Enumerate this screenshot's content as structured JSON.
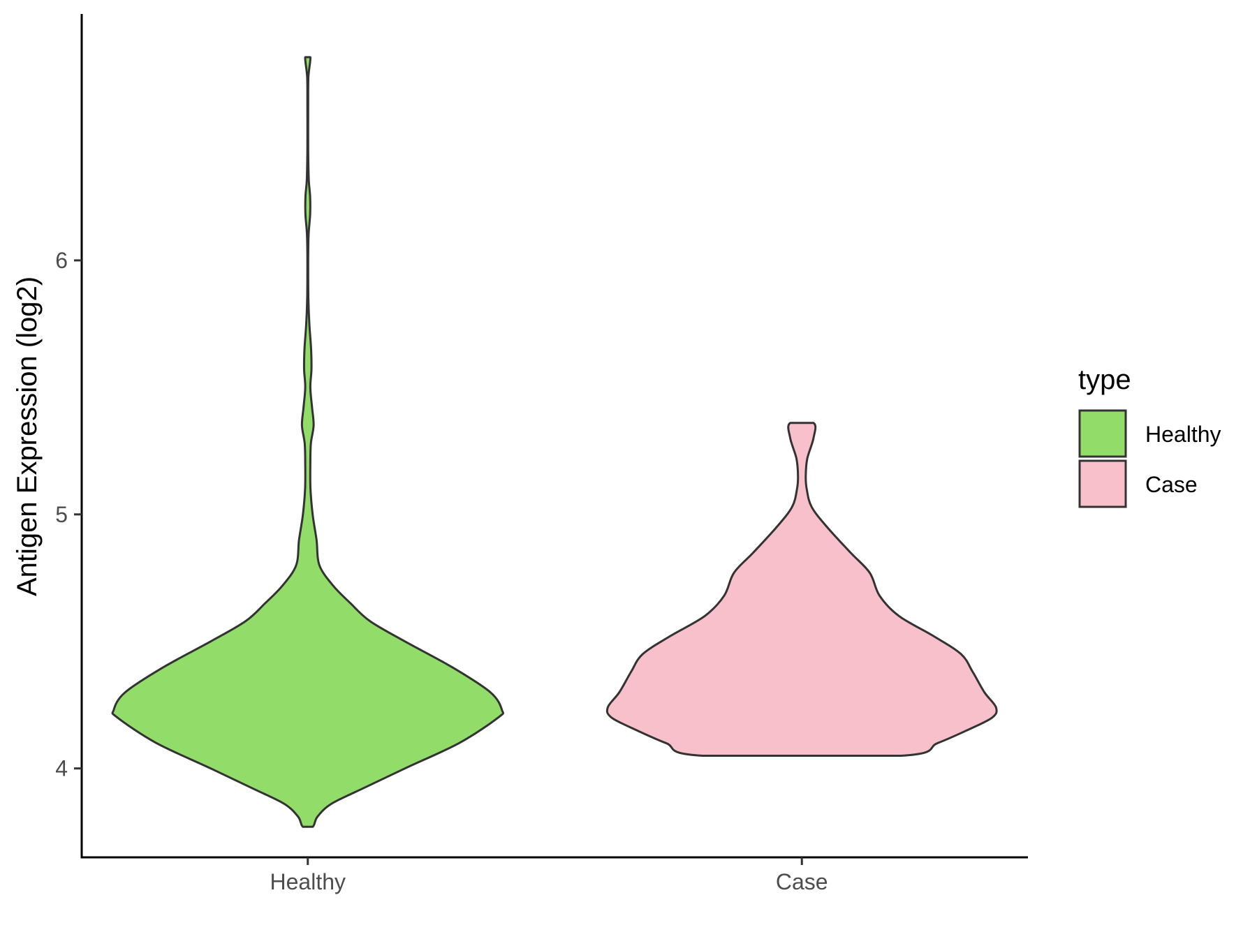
{
  "chart_data": {
    "type": "violin",
    "title": "",
    "xlabel": "",
    "ylabel": "Antigen Expression (log2)",
    "ylim": [
      3.65,
      6.97
    ],
    "y_ticks": [
      4,
      5,
      6
    ],
    "y_tick_labels": [
      "4",
      "5",
      "6"
    ],
    "categories": [
      "Healthy",
      "Case"
    ],
    "grid": false,
    "legend": {
      "title": "type",
      "position": "right",
      "entries": [
        {
          "label": "Healthy",
          "color": "#92dc6a"
        },
        {
          "label": "Case",
          "color": "#f8c0cb"
        }
      ]
    },
    "series": [
      {
        "name": "Healthy",
        "color": "#92dc6a",
        "y_min": 3.77,
        "y_max": 6.8,
        "density_profile": [
          [
            3.77,
            0.025
          ],
          [
            3.81,
            0.05
          ],
          [
            3.86,
            0.12
          ],
          [
            3.92,
            0.28
          ],
          [
            4.0,
            0.5
          ],
          [
            4.1,
            0.78
          ],
          [
            4.2,
            0.98
          ],
          [
            4.23,
            1.0
          ],
          [
            4.3,
            0.94
          ],
          [
            4.4,
            0.74
          ],
          [
            4.5,
            0.5
          ],
          [
            4.58,
            0.32
          ],
          [
            4.65,
            0.22
          ],
          [
            4.72,
            0.13
          ],
          [
            4.8,
            0.06
          ],
          [
            4.9,
            0.045
          ],
          [
            5.0,
            0.025
          ],
          [
            5.1,
            0.014
          ],
          [
            5.2,
            0.013
          ],
          [
            5.28,
            0.016
          ],
          [
            5.35,
            0.03
          ],
          [
            5.42,
            0.022
          ],
          [
            5.5,
            0.013
          ],
          [
            5.57,
            0.019
          ],
          [
            5.65,
            0.017
          ],
          [
            5.75,
            0.008
          ],
          [
            5.85,
            0.003
          ],
          [
            6.0,
            0.002
          ],
          [
            6.1,
            0.004
          ],
          [
            6.18,
            0.012
          ],
          [
            6.25,
            0.012
          ],
          [
            6.32,
            0.005
          ],
          [
            6.45,
            0.002
          ],
          [
            6.6,
            0.002
          ],
          [
            6.72,
            0.003
          ],
          [
            6.8,
            0.013
          ]
        ]
      },
      {
        "name": "Case",
        "color": "#f8c0cb",
        "y_min": 4.05,
        "y_max": 5.36,
        "density_profile": [
          [
            4.05,
            0.51
          ],
          [
            4.1,
            0.7
          ],
          [
            4.15,
            0.85
          ],
          [
            4.2,
            0.98
          ],
          [
            4.24,
            1.0
          ],
          [
            4.3,
            0.94
          ],
          [
            4.38,
            0.88
          ],
          [
            4.45,
            0.82
          ],
          [
            4.52,
            0.68
          ],
          [
            4.6,
            0.5
          ],
          [
            4.68,
            0.4
          ],
          [
            4.77,
            0.35
          ],
          [
            4.85,
            0.25
          ],
          [
            4.95,
            0.13
          ],
          [
            5.03,
            0.05
          ],
          [
            5.1,
            0.025
          ],
          [
            5.15,
            0.02
          ],
          [
            5.22,
            0.028
          ],
          [
            5.3,
            0.06
          ],
          [
            5.36,
            0.06
          ]
        ]
      }
    ]
  }
}
